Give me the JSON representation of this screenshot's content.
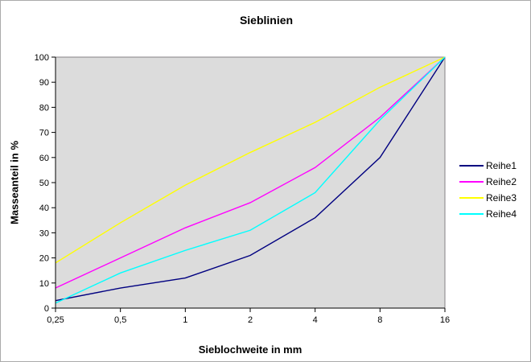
{
  "title": "Sieblinien",
  "chart_data": {
    "type": "line",
    "title": "Sieblinien",
    "xlabel": "Sieblochweite in mm",
    "ylabel": "Masseanteil in %",
    "categories": [
      "0,25",
      "0,5",
      "1",
      "2",
      "4",
      "8",
      "16"
    ],
    "x_scale": "logarithmic values shown as equally spaced categories",
    "y_ticks": [
      0,
      10,
      20,
      30,
      40,
      50,
      60,
      70,
      80,
      90,
      100
    ],
    "ylim": [
      0,
      100
    ],
    "grid": false,
    "legend_position": "right",
    "plot_area_color": "#dcdcdc",
    "plot_border_color": "#848284",
    "axis_color": "#000000",
    "series": [
      {
        "name": "Reihe1",
        "color": "#000080",
        "values": [
          3,
          8,
          12,
          21,
          36,
          60,
          100
        ]
      },
      {
        "name": "Reihe2",
        "color": "#ff00ff",
        "values": [
          8,
          20,
          32,
          42,
          56,
          76,
          100
        ]
      },
      {
        "name": "Reihe3",
        "color": "#ffff00",
        "values": [
          18,
          34,
          49,
          62,
          74,
          88,
          100
        ]
      },
      {
        "name": "Reihe4",
        "color": "#00ffff",
        "values": [
          2,
          14,
          23,
          31,
          46,
          75,
          100
        ]
      }
    ]
  }
}
